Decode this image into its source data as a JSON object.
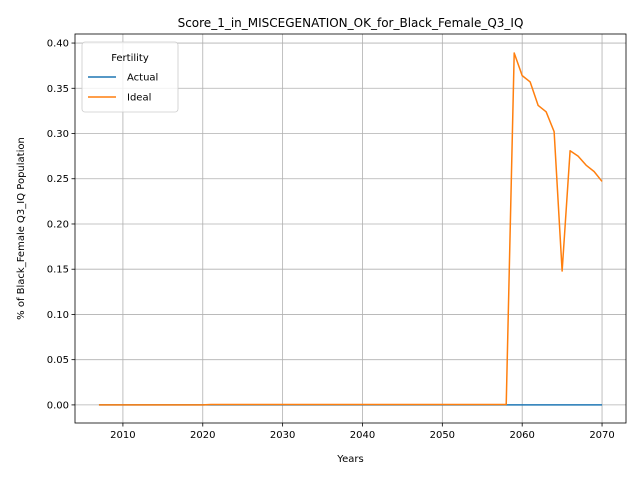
{
  "chart_data": {
    "type": "line",
    "title": "Score_1_in_MISCEGENATION_OK_for_Black_Female_Q3_IQ",
    "xlabel": "Years",
    "ylabel": "% of Black_Female Q3_IQ Population",
    "xlim": [
      2004,
      2073
    ],
    "ylim": [
      -0.02,
      0.41
    ],
    "xticks": [
      2010,
      2020,
      2030,
      2040,
      2050,
      2060,
      2070
    ],
    "xtick_labels": [
      "2010",
      "2020",
      "2030",
      "2040",
      "2050",
      "2060",
      "2070"
    ],
    "yticks": [
      0.0,
      0.05,
      0.1,
      0.15,
      0.2,
      0.25,
      0.3,
      0.35,
      0.4
    ],
    "ytick_labels": [
      "0.00",
      "0.05",
      "0.10",
      "0.15",
      "0.20",
      "0.25",
      "0.30",
      "0.35",
      "0.40"
    ],
    "grid": true,
    "legend": {
      "title": "Fertility",
      "placement": "upper-left"
    },
    "series": [
      {
        "name": "Actual",
        "color": "#1f77b4",
        "x": [
          2007,
          2010,
          2020,
          2030,
          2040,
          2050,
          2058,
          2059,
          2060,
          2065,
          2070
        ],
        "y": [
          0,
          0,
          0,
          0,
          0,
          0,
          0,
          0,
          0,
          0,
          0
        ]
      },
      {
        "name": "Ideal",
        "color": "#ff7f0e",
        "x": [
          2007,
          2010,
          2020,
          2021,
          2030,
          2040,
          2050,
          2058,
          2059,
          2060,
          2061,
          2062,
          2063,
          2064,
          2065,
          2066,
          2067,
          2068,
          2069,
          2070
        ],
        "y": [
          0,
          0,
          0,
          0.0005,
          0.0005,
          0.0005,
          0.0005,
          0.0005,
          0.389,
          0.364,
          0.357,
          0.331,
          0.324,
          0.302,
          0.148,
          0.281,
          0.275,
          0.265,
          0.258,
          0.247
        ]
      }
    ]
  }
}
